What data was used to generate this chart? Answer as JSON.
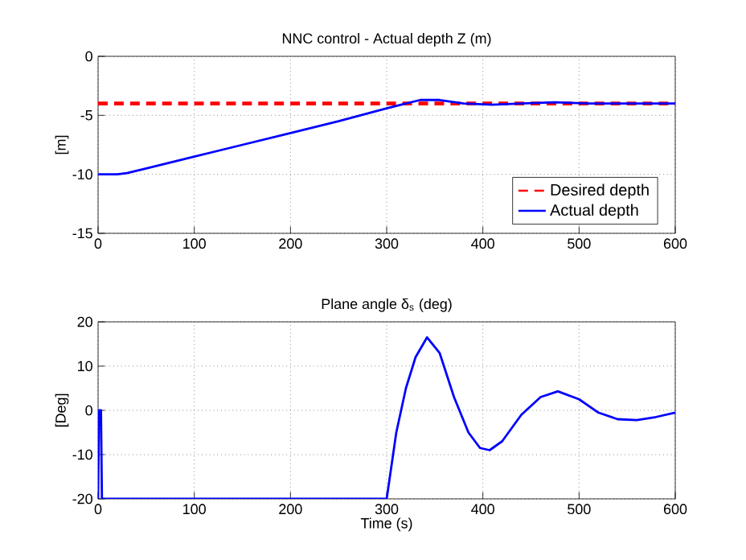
{
  "chart_data": [
    {
      "type": "line",
      "title": "NNC control - Actual depth Z (m)",
      "ylabel": "[m]",
      "xlim": [
        0,
        600
      ],
      "ylim": [
        -15,
        0
      ],
      "xticks": [
        0,
        100,
        200,
        300,
        400,
        500,
        600
      ],
      "yticks": [
        -15,
        -10,
        -5,
        0
      ],
      "grid": true,
      "legend": "bottom right",
      "series": [
        {
          "name": "Desired depth",
          "color": "#ff0000",
          "line_style": "dashed",
          "x": [
            0,
            600
          ],
          "values": [
            -4,
            -4
          ]
        },
        {
          "name": "Actual depth",
          "color": "#0000ff",
          "line_style": "solid",
          "x": [
            0,
            10,
            20,
            30,
            50,
            100,
            150,
            200,
            250,
            300,
            320,
            335,
            355,
            380,
            410,
            440,
            475,
            510,
            550,
            600
          ],
          "values": [
            -10,
            -10,
            -10,
            -9.9,
            -9.5,
            -8.5,
            -7.5,
            -6.5,
            -5.5,
            -4.4,
            -4.0,
            -3.7,
            -3.7,
            -4.0,
            -4.1,
            -4.0,
            -3.9,
            -4.0,
            -4.0,
            -4.0
          ]
        }
      ]
    },
    {
      "type": "line",
      "title": "Plane angle δ$_{s}$ (deg)",
      "xlabel": "Time (s)",
      "ylabel": "[Deg]",
      "xlim": [
        0,
        600
      ],
      "ylim": [
        -20,
        20
      ],
      "xticks": [
        0,
        100,
        200,
        300,
        400,
        500,
        600
      ],
      "yticks": [
        -20,
        -10,
        0,
        10,
        20
      ],
      "grid": true,
      "series": [
        {
          "color": "#0000ff",
          "line_style": "solid",
          "x": [
            0,
            1,
            3,
            4,
            300,
            310,
            320,
            330,
            342,
            355,
            370,
            385,
            397,
            407,
            420,
            440,
            460,
            478,
            500,
            520,
            540,
            560,
            580,
            600
          ],
          "values": [
            -20,
            0,
            0,
            -20,
            -20,
            -5,
            5,
            12,
            16.5,
            13,
            3,
            -5,
            -8.5,
            -9,
            -7,
            -1,
            3,
            4.3,
            2.5,
            -0.5,
            -2,
            -2.2,
            -1.5,
            -0.5
          ]
        }
      ]
    }
  ]
}
